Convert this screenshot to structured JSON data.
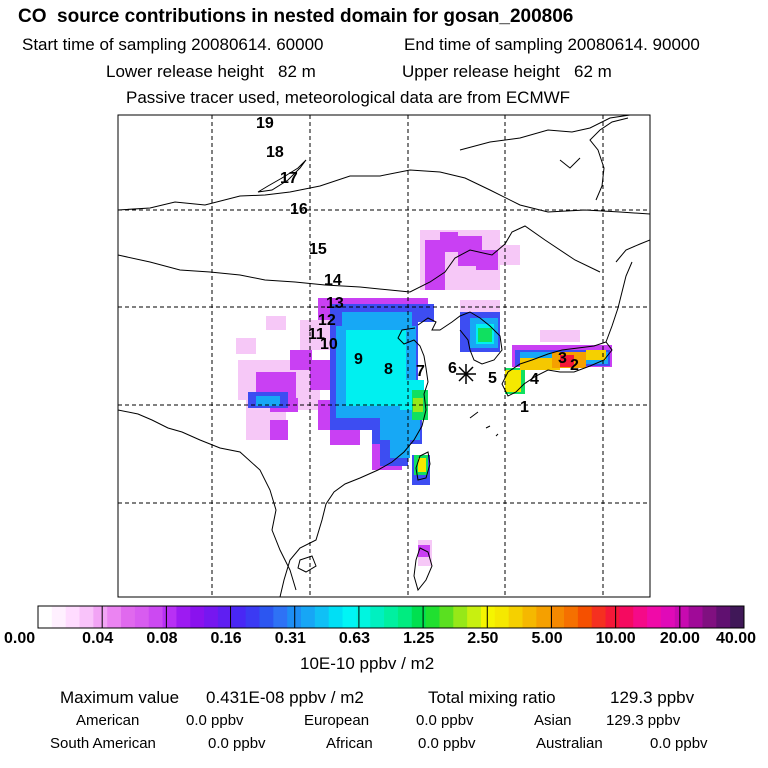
{
  "header": {
    "title": "CO  source contributions in nested domain for gosan_200806",
    "start_label": "Start time of sampling 20080614. 60000",
    "end_label": "End time of sampling 20080614. 90000",
    "lower_label": "Lower release height   82 m",
    "upper_label": "Upper release height   62 m",
    "tracer_label": "Passive tracer used, meteorological data are from ECMWF"
  },
  "map": {
    "trajectory_points": [
      "1",
      "2",
      "3",
      "4",
      "5",
      "6",
      "7",
      "8",
      "9",
      "10",
      "11",
      "12",
      "13",
      "14",
      "15",
      "16",
      "17",
      "18",
      "19"
    ],
    "receptor_marker": "asterisk-icon",
    "grid": "dashed",
    "colors": {
      "frame": "#000000",
      "coast": "#000000",
      "grid": "#000000"
    }
  },
  "colorbar": {
    "ticks": [
      "0.00",
      "0.04",
      "0.08",
      "0.16",
      "0.31",
      "0.63",
      "1.25",
      "2.50",
      "5.00",
      "10.00",
      "20.00",
      "40.00"
    ],
    "unit": "10E-10 ppbv / m2",
    "colors": [
      "#ffffff",
      "#fff0ff",
      "#ffdcff",
      "#f9c3fa",
      "#f2a4f5",
      "#eb84f2",
      "#e069ee",
      "#d85cf0",
      "#cc49f2",
      "#b830f5",
      "#9d1bf2",
      "#8a12ee",
      "#7617f0",
      "#5f1ff2",
      "#4927f5",
      "#3b3af3",
      "#2c56f1",
      "#2e72f5",
      "#1d8ef5",
      "#17a6f5",
      "#10c0f5",
      "#00dff5",
      "#00f5f5",
      "#00f5e0",
      "#00f0c0",
      "#00f0a0",
      "#00ec80",
      "#00e050",
      "#20e030",
      "#5ae020",
      "#96e818",
      "#c8f010",
      "#f5f500",
      "#f5e800",
      "#f5d000",
      "#f5b800",
      "#f5a000",
      "#f58800",
      "#f57000",
      "#f55000",
      "#f53020",
      "#f51838",
      "#f50a60",
      "#f50a88",
      "#f00aa8",
      "#e00ab8",
      "#c80ab0",
      "#a00a98",
      "#801080",
      "#601070",
      "#401858"
    ]
  },
  "stats": {
    "max_label": "Maximum value",
    "max_value": "0.431E-08 ppbv / m2",
    "total_label": "Total mixing ratio",
    "total_value": "129.3 ppbv",
    "sources": [
      {
        "name": "American",
        "value": "0.0 ppbv"
      },
      {
        "name": "European",
        "value": "0.0 ppbv"
      },
      {
        "name": "Asian",
        "value": "129.3 ppbv"
      },
      {
        "name": "South American",
        "value": "0.0 ppbv"
      },
      {
        "name": "African",
        "value": "0.0 ppbv"
      },
      {
        "name": "Australian",
        "value": "0.0 ppbv"
      }
    ]
  }
}
